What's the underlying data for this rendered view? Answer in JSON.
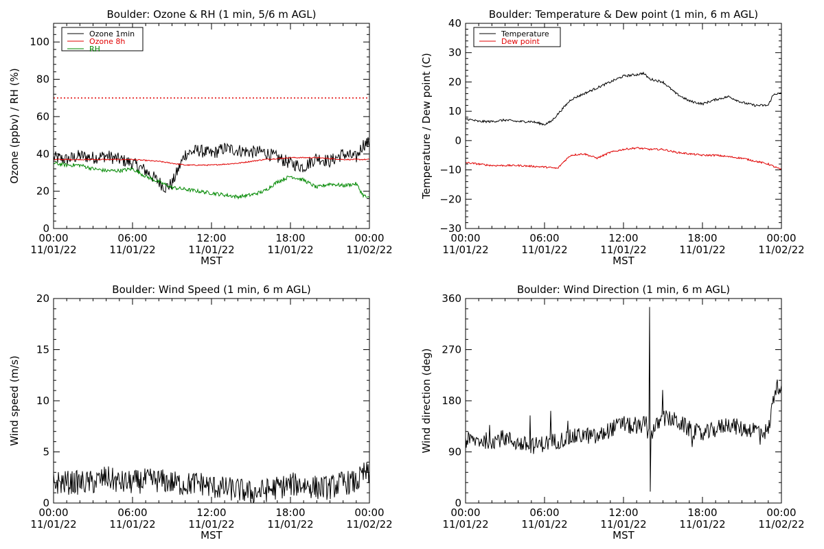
{
  "chart_data": [
    {
      "type": "line",
      "title": "Boulder: Ozone & RH (1 min, 5/6 m AGL)",
      "xlabel": "MST",
      "ylabel": "Ozone (ppbv) / RH (%)",
      "ylim": [
        0,
        110
      ],
      "yticks": [
        "0",
        "20",
        "40",
        "60",
        "80",
        "100"
      ],
      "yticks_values": [
        0,
        20,
        40,
        60,
        80,
        100
      ],
      "xtick_times": [
        "00:00",
        "06:00",
        "12:00",
        "18:00",
        "00:00"
      ],
      "xtick_dates": [
        "11/01/22",
        "11/01/22",
        "11/01/22",
        "11/01/22",
        "11/02/22"
      ],
      "xlim_hours": [
        0,
        24
      ],
      "legend_position": "top-left",
      "reference_line": {
        "y": 70,
        "style": "dotted",
        "color": "#e00000"
      },
      "series": [
        {
          "name": "Ozone 1min",
          "color": "#000000",
          "noise": 3.5,
          "x_hours": [
            0,
            1,
            2,
            3,
            4,
            5,
            6,
            7,
            7.5,
            8,
            8.5,
            9,
            9.5,
            10,
            11,
            12,
            13,
            14,
            15,
            16,
            17,
            18,
            19,
            20,
            21,
            22,
            23,
            23.5,
            24
          ],
          "values": [
            38,
            37,
            39,
            38,
            39,
            37,
            35,
            31,
            28,
            25,
            22,
            24,
            32,
            40,
            42,
            40,
            43,
            42,
            41,
            41,
            38,
            35,
            33,
            38,
            36,
            40,
            38,
            45,
            46
          ]
        },
        {
          "name": "Ozone 8h",
          "color": "#e00000",
          "noise": 0.3,
          "x_hours": [
            0,
            2,
            4,
            6,
            8,
            10,
            12,
            14,
            16,
            18,
            20,
            22,
            24
          ],
          "values": [
            37,
            37,
            37,
            37,
            36,
            34,
            34,
            35,
            37,
            38,
            38,
            37,
            37
          ]
        },
        {
          "name": "RH",
          "color": "#008800",
          "noise": 1.0,
          "x_hours": [
            0,
            1,
            2,
            3,
            4,
            5,
            6,
            7,
            8,
            9,
            10,
            11,
            12,
            13,
            14,
            15,
            16,
            17,
            18,
            19,
            20,
            21,
            22,
            23,
            23.5,
            24
          ],
          "values": [
            35,
            34,
            34,
            32,
            31,
            31,
            32,
            28,
            25,
            22,
            21,
            20,
            19,
            18,
            17,
            18,
            20,
            25,
            28,
            26,
            22,
            24,
            23,
            24,
            18,
            16
          ]
        }
      ]
    },
    {
      "type": "line",
      "title": "Boulder: Temperature & Dew point (1 min, 6 m AGL)",
      "xlabel": "MST",
      "ylabel": "Temperature / Dew point (C)",
      "ylim": [
        -30,
        40
      ],
      "yticks": [
        "−30",
        "−20",
        "−10",
        "0",
        "10",
        "20",
        "30",
        "40"
      ],
      "yticks_values": [
        -30,
        -20,
        -10,
        0,
        10,
        20,
        30,
        40
      ],
      "xtick_times": [
        "00:00",
        "06:00",
        "12:00",
        "18:00",
        "00:00"
      ],
      "xtick_dates": [
        "11/01/22",
        "11/01/22",
        "11/01/22",
        "11/01/22",
        "11/02/22"
      ],
      "xlim_hours": [
        0,
        24
      ],
      "legend_position": "top-left",
      "series": [
        {
          "name": "Temperature",
          "color": "#000000",
          "noise": 0.4,
          "x_hours": [
            0,
            1,
            2,
            3,
            4,
            5,
            6,
            6.5,
            7,
            8,
            9,
            10,
            11,
            12,
            13,
            13.5,
            14,
            15,
            16,
            17,
            18,
            19,
            20,
            21,
            22,
            23,
            23.3,
            23.5,
            24
          ],
          "values": [
            7.5,
            6.5,
            6.5,
            7.0,
            6.5,
            6.5,
            5.5,
            6.5,
            9,
            14,
            16,
            18,
            20,
            22,
            22.5,
            23,
            21,
            20,
            16,
            13.5,
            12.5,
            14,
            15,
            13,
            12,
            12,
            15,
            16,
            16
          ]
        },
        {
          "name": "Dew point",
          "color": "#e00000",
          "noise": 0.3,
          "x_hours": [
            0,
            2,
            4,
            6,
            7,
            7.5,
            8,
            9,
            10,
            11,
            12,
            13,
            14,
            15,
            16,
            17,
            18,
            19,
            20,
            21,
            22,
            23,
            24
          ],
          "values": [
            -7.5,
            -8.5,
            -8.5,
            -9,
            -9.5,
            -7,
            -5,
            -4.5,
            -6,
            -4,
            -3,
            -2.5,
            -3,
            -3,
            -4,
            -4.5,
            -5,
            -5,
            -5.5,
            -6,
            -7,
            -8,
            -10
          ]
        }
      ]
    },
    {
      "type": "line",
      "title": "Boulder: Wind Speed (1 min, 6 m AGL)",
      "xlabel": "MST",
      "ylabel": "Wind speed (m/s)",
      "ylim": [
        0,
        20
      ],
      "yticks": [
        "0",
        "5",
        "10",
        "15",
        "20"
      ],
      "yticks_values": [
        0,
        5,
        10,
        15,
        20
      ],
      "xtick_times": [
        "00:00",
        "06:00",
        "12:00",
        "18:00",
        "00:00"
      ],
      "xtick_dates": [
        "11/01/22",
        "11/01/22",
        "11/01/22",
        "11/01/22",
        "11/02/22"
      ],
      "xlim_hours": [
        0,
        24
      ],
      "series": [
        {
          "name": "",
          "color": "#000000",
          "noise": 1.2,
          "x_hours": [
            0,
            2,
            3,
            4,
            5,
            6,
            7,
            8,
            9,
            10,
            11,
            12,
            13,
            14,
            15,
            16,
            17,
            18,
            19,
            20,
            21,
            22,
            23,
            23.7,
            24
          ],
          "values": [
            2,
            2,
            2,
            2.5,
            2,
            2,
            2.2,
            2.2,
            2,
            1.8,
            2,
            1.6,
            1.4,
            1.3,
            1,
            1.2,
            1.5,
            1.8,
            1.8,
            1.5,
            1.5,
            2,
            2,
            3,
            2.5
          ]
        }
      ]
    },
    {
      "type": "line",
      "title": "Boulder: Wind Direction (1 min, 6 m AGL)",
      "xlabel": "MST",
      "ylabel": "Wind direction (deg)",
      "ylim": [
        0,
        360
      ],
      "yticks": [
        "0",
        "90",
        "180",
        "270",
        "360"
      ],
      "yticks_values": [
        0,
        90,
        180,
        270,
        360
      ],
      "xtick_times": [
        "00:00",
        "06:00",
        "12:00",
        "18:00",
        "00:00"
      ],
      "xtick_dates": [
        "11/01/22",
        "11/01/22",
        "11/01/22",
        "11/01/22",
        "11/02/22"
      ],
      "xlim_hours": [
        0,
        24
      ],
      "series": [
        {
          "name": "",
          "color": "#000000",
          "noise": 15,
          "x_hours": [
            0,
            2,
            3,
            4,
            5,
            6,
            7,
            8,
            9,
            10,
            11,
            12,
            13,
            13.5,
            14,
            14.5,
            15,
            16,
            17,
            18,
            19,
            20,
            21,
            22,
            23,
            23.5,
            24
          ],
          "values": [
            110,
            110,
            115,
            105,
            100,
            105,
            110,
            115,
            120,
            115,
            130,
            140,
            130,
            140,
            120,
            135,
            150,
            145,
            130,
            120,
            130,
            140,
            130,
            130,
            125,
            200,
            210
          ]
        }
      ]
    }
  ]
}
